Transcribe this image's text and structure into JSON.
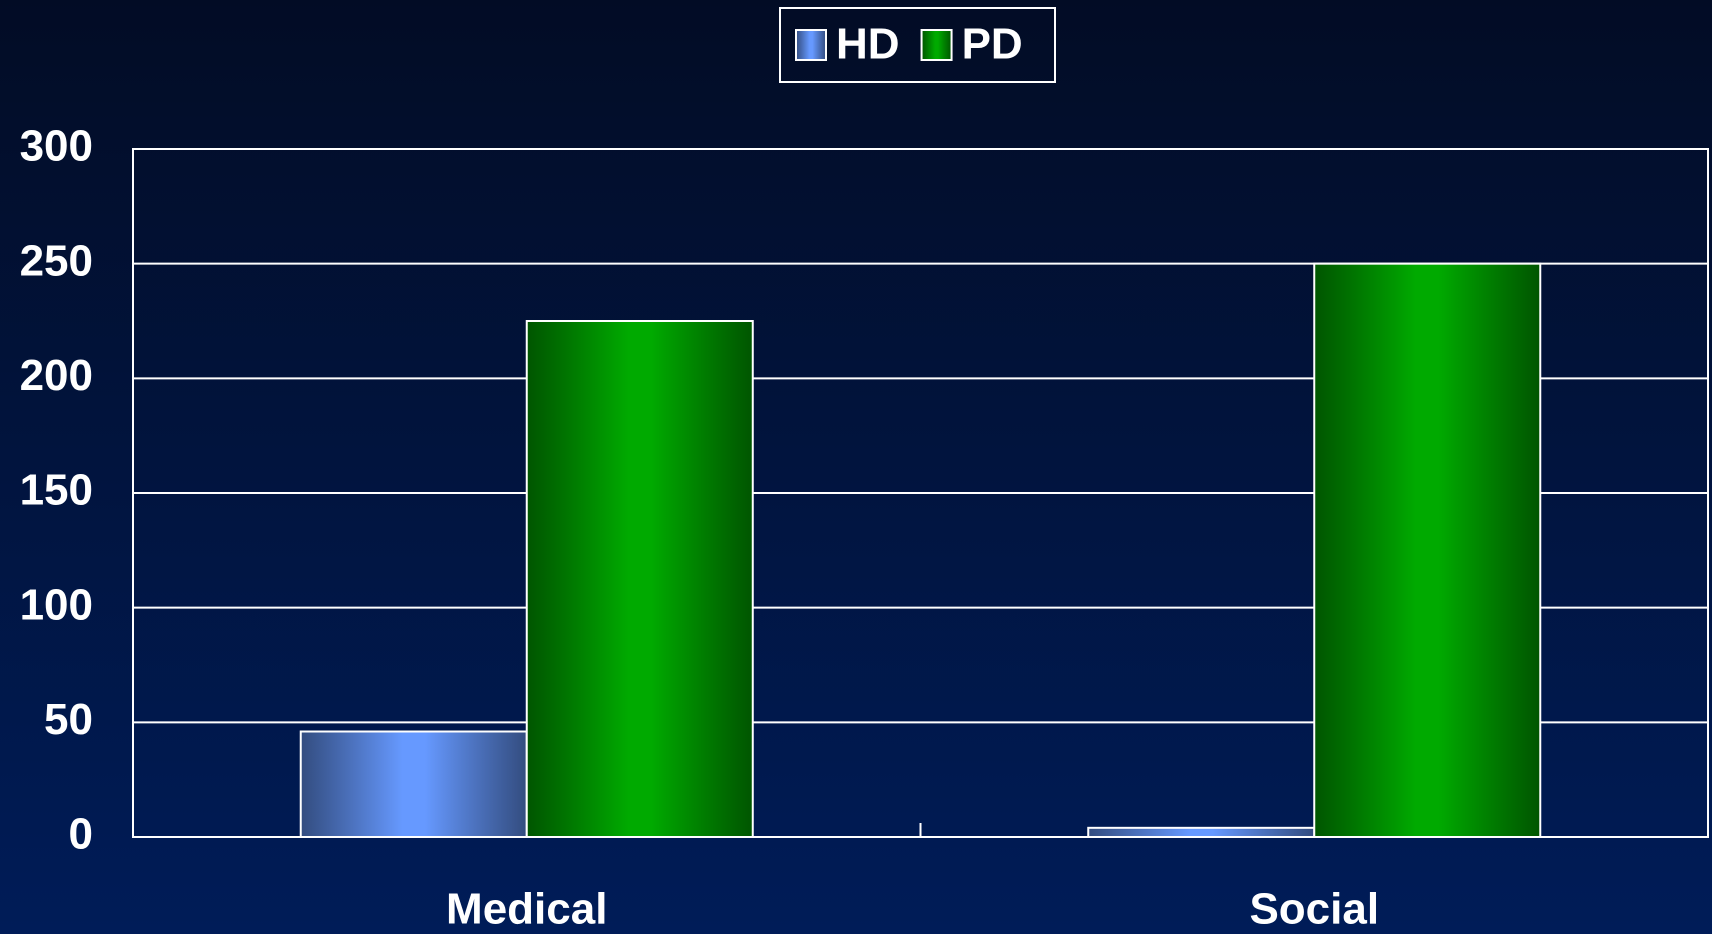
{
  "chart_data": {
    "type": "bar",
    "categories": [
      "Medical",
      "Social"
    ],
    "series": [
      {
        "name": "HD",
        "color": "#6699ff",
        "values": [
          46,
          4
        ]
      },
      {
        "name": "PD",
        "color": "#00aa00",
        "values": [
          225,
          250
        ]
      }
    ],
    "ylim": [
      0,
      300
    ],
    "yticks": [
      0,
      50,
      100,
      150,
      200,
      250,
      300
    ],
    "grid": true,
    "legend": "top"
  }
}
